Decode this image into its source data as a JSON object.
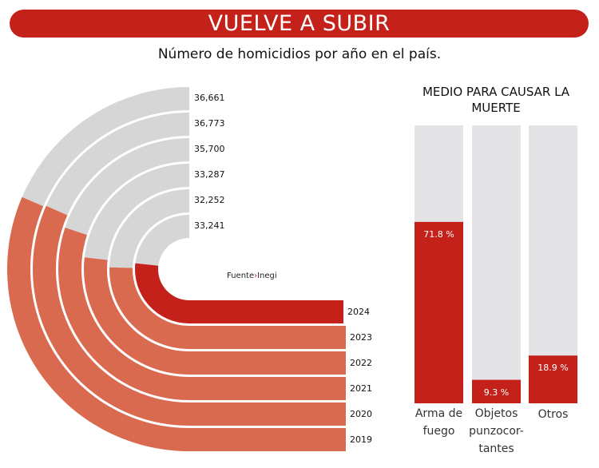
{
  "banner": "VUELVE A SUBIR",
  "subtitle": "Número de homicidios por año en el país.",
  "source": {
    "label": "Fuente",
    "separator": "›",
    "name": "Inegi"
  },
  "colors": {
    "red": "#c4211b",
    "orange": "#d96a4f",
    "grey": "#d6d6d6",
    "bar_bg": "#e4e4e6"
  },
  "chart_data": [
    {
      "type": "radial-bar",
      "years": [
        "2019",
        "2020",
        "2021",
        "2022",
        "2023",
        "2024"
      ],
      "values": [
        36661,
        36773,
        35700,
        33287,
        32252,
        33241
      ],
      "value_labels": [
        "36,661",
        "36,773",
        "35,700",
        "33,287",
        "32,252",
        "33,241"
      ],
      "highlight": "2024"
    },
    {
      "type": "bar",
      "title": "MEDIO PARA CAUSAR LA MUERTE",
      "categories": [
        "Arma de fuego",
        "Objetos punzocor-tantes",
        "Otros"
      ],
      "category_lines": [
        [
          "Arma de",
          "fuego"
        ],
        [
          "Objetos",
          "punzocor-",
          "tantes"
        ],
        [
          "Otros"
        ]
      ],
      "values": [
        71.8,
        9.3,
        18.9
      ],
      "value_labels": [
        "71.8 %",
        "9.3 %",
        "18.9 %"
      ],
      "unit": "%"
    }
  ]
}
